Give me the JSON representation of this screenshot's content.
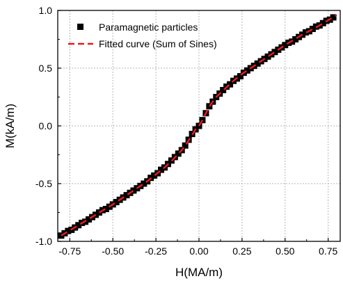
{
  "chart_data": {
    "type": "scatter",
    "xlabel": "H(MA/m)",
    "ylabel": "M(kA/m)",
    "xlim": [
      -0.82,
      0.82
    ],
    "ylim": [
      -1.0,
      1.0
    ],
    "xticks": [
      "-0.75",
      "-0.50",
      "-0.25",
      "0.00",
      "0.25",
      "0.50",
      "0.75"
    ],
    "xtick_values": [
      -0.75,
      -0.5,
      -0.25,
      0.0,
      0.25,
      0.5,
      0.75
    ],
    "yticks": [
      "-1.0",
      "-0.5",
      "0.0",
      "0.5",
      "1.0"
    ],
    "ytick_values": [
      -1.0,
      -0.5,
      0.0,
      0.5,
      1.0
    ],
    "grid": true,
    "legend_position": "top-left",
    "series": [
      {
        "name": "Paramagnetic particles",
        "style": "square-markers",
        "color": "#000000",
        "x": [
          -0.8,
          -0.78,
          -0.76,
          -0.74,
          -0.72,
          -0.7,
          -0.68,
          -0.66,
          -0.64,
          -0.62,
          -0.6,
          -0.58,
          -0.56,
          -0.54,
          -0.52,
          -0.5,
          -0.48,
          -0.46,
          -0.44,
          -0.42,
          -0.4,
          -0.38,
          -0.36,
          -0.34,
          -0.32,
          -0.3,
          -0.28,
          -0.26,
          -0.24,
          -0.22,
          -0.2,
          -0.18,
          -0.16,
          -0.14,
          -0.12,
          -0.1,
          -0.08,
          -0.06,
          -0.04,
          -0.02,
          0.0,
          0.02,
          0.04,
          0.06,
          0.08,
          0.1,
          0.12,
          0.14,
          0.16,
          0.18,
          0.2,
          0.22,
          0.24,
          0.26,
          0.28,
          0.3,
          0.32,
          0.34,
          0.36,
          0.38,
          0.4,
          0.42,
          0.44,
          0.46,
          0.48,
          0.5,
          0.52,
          0.54,
          0.56,
          0.58,
          0.6,
          0.62,
          0.64,
          0.66,
          0.68,
          0.7,
          0.72,
          0.74,
          0.76,
          0.78
        ],
        "y": [
          -0.95,
          -0.93,
          -0.91,
          -0.9,
          -0.88,
          -0.86,
          -0.84,
          -0.83,
          -0.81,
          -0.79,
          -0.77,
          -0.75,
          -0.73,
          -0.72,
          -0.7,
          -0.68,
          -0.66,
          -0.64,
          -0.62,
          -0.6,
          -0.58,
          -0.56,
          -0.54,
          -0.52,
          -0.5,
          -0.48,
          -0.45,
          -0.43,
          -0.41,
          -0.38,
          -0.36,
          -0.33,
          -0.3,
          -0.27,
          -0.24,
          -0.21,
          -0.17,
          -0.12,
          -0.07,
          -0.03,
          0.0,
          0.05,
          0.11,
          0.17,
          0.21,
          0.25,
          0.28,
          0.31,
          0.34,
          0.36,
          0.39,
          0.41,
          0.43,
          0.46,
          0.48,
          0.5,
          0.52,
          0.54,
          0.56,
          0.58,
          0.6,
          0.62,
          0.64,
          0.66,
          0.68,
          0.7,
          0.72,
          0.73,
          0.75,
          0.77,
          0.79,
          0.81,
          0.82,
          0.84,
          0.86,
          0.87,
          0.89,
          0.91,
          0.92,
          0.94
        ]
      },
      {
        "name": "Fitted curve (Sum of Sines)",
        "style": "dashed-line",
        "color": "#e8191f",
        "x": [
          -0.8,
          -0.7,
          -0.6,
          -0.5,
          -0.4,
          -0.3,
          -0.25,
          -0.2,
          -0.15,
          -0.1,
          -0.07,
          -0.04,
          -0.02,
          0.0,
          0.02,
          0.04,
          0.07,
          0.1,
          0.15,
          0.2,
          0.25,
          0.3,
          0.4,
          0.5,
          0.6,
          0.7,
          0.8
        ],
        "y": [
          -0.95,
          -0.86,
          -0.77,
          -0.68,
          -0.58,
          -0.48,
          -0.42,
          -0.36,
          -0.29,
          -0.21,
          -0.15,
          -0.08,
          -0.03,
          0.0,
          0.05,
          0.11,
          0.19,
          0.25,
          0.32,
          0.39,
          0.45,
          0.5,
          0.6,
          0.7,
          0.79,
          0.87,
          0.96
        ]
      }
    ]
  }
}
